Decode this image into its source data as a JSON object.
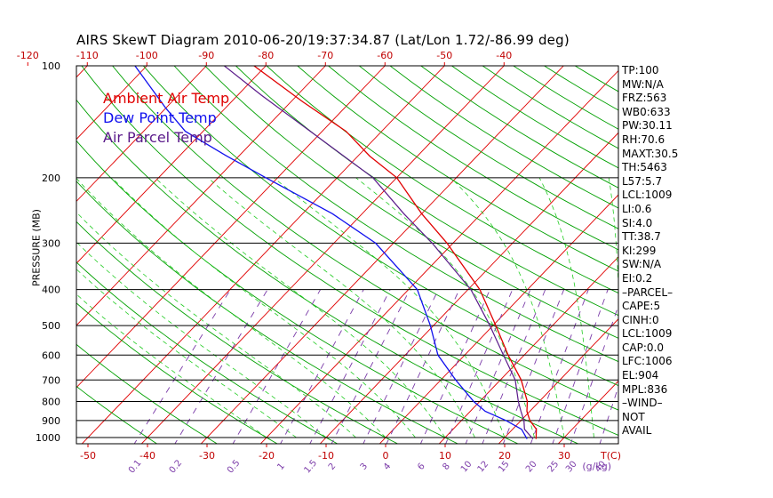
{
  "title": "AIRS SkewT Diagram 2010-06-20/19:37:34.87 (Lat/Lon 1.72/-86.99 deg)",
  "legend": [
    {
      "label": "Ambient Air Temp",
      "color": "#e00000"
    },
    {
      "label": "Dew Point Temp",
      "color": "#1010ee"
    },
    {
      "label": "Air Parcel Temp",
      "color": "#5a1a8a"
    }
  ],
  "ylabel": "PRESSURE (MB)",
  "stats": [
    "TP:100",
    "MW:N/A",
    "FRZ:563",
    "WB0:633",
    "PW:30.11",
    "RH:70.6",
    "MAXT:30.5",
    "TH:5463",
    "L57:5.7",
    "LCL:1009",
    "LI:0.6",
    "SI:4.0",
    "TT:38.7",
    "KI:299",
    "SW:N/A",
    "EI:0.2",
    "–PARCEL–",
    "CAPE:5",
    "CINH:0",
    "LCL:1009",
    "CAP:0.0",
    "LFC:1006",
    "EL:904",
    "MPL:836",
    "–WIND–",
    "NOT",
    "AVAIL"
  ],
  "chart_data": {
    "type": "line",
    "title": "AIRS SkewT Diagram 2010-06-20/19:37:34.87 (Lat/Lon 1.72/-86.99 deg)",
    "ylabel": "PRESSURE (MB)",
    "xlabel": "T(C)",
    "y_scale": "log",
    "ylim": [
      1050,
      100
    ],
    "pressure_ticks": [
      100,
      200,
      300,
      400,
      500,
      600,
      700,
      800,
      900,
      1000
    ],
    "bottom_temp_ticks": [
      -50,
      -40,
      -30,
      -20,
      -10,
      0,
      10,
      20,
      30
    ],
    "top_temp_ticks": [
      -120,
      -110,
      -100,
      -90,
      -80,
      -70,
      -60,
      -50,
      -40
    ],
    "bottom_axis_unit": "T(C)",
    "mixing_ratio_ticks": [
      "0.1",
      "0.2",
      "0.5",
      "1",
      "1.5",
      "2",
      "3",
      "4",
      "6",
      "8",
      "10",
      "12",
      "15",
      "20",
      "25",
      "30",
      "40"
    ],
    "mixing_ratio_unit": "(g/kg)",
    "colors": {
      "temp": "#e00000",
      "dewpoint": "#1010ee",
      "parcel": "#5a1a8a",
      "dry_adiabat": "#00a000",
      "moist_adiabat": "#22cc22",
      "isotherm": "#e00000",
      "mixing_ratio": "#7a3aa8",
      "isobar": "#000000"
    },
    "series": [
      {
        "name": "Ambient Air Temp",
        "color": "#e00000",
        "points": [
          [
            1009,
            25.5
          ],
          [
            950,
            24.0
          ],
          [
            900,
            21.5
          ],
          [
            850,
            19.5
          ],
          [
            800,
            18.0
          ],
          [
            700,
            13.5
          ],
          [
            600,
            7.3
          ],
          [
            500,
            0.5
          ],
          [
            400,
            -8.0
          ],
          [
            300,
            -21.0
          ],
          [
            250,
            -30.0
          ],
          [
            200,
            -40.0
          ],
          [
            175,
            -48.0
          ],
          [
            150,
            -56.0
          ],
          [
            125,
            -68.0
          ],
          [
            100,
            -82.0
          ]
        ]
      },
      {
        "name": "Dew Point Temp",
        "color": "#1010ee",
        "points": [
          [
            1009,
            24.0
          ],
          [
            950,
            21.5
          ],
          [
            900,
            17.5
          ],
          [
            850,
            12.5
          ],
          [
            800,
            9.0
          ],
          [
            700,
            2.5
          ],
          [
            600,
            -4.5
          ],
          [
            500,
            -10.5
          ],
          [
            400,
            -18.5
          ],
          [
            300,
            -33.0
          ],
          [
            250,
            -45.0
          ],
          [
            200,
            -62.0
          ],
          [
            175,
            -72.0
          ],
          [
            150,
            -83.0
          ],
          [
            130,
            -90.0
          ],
          [
            100,
            -102.0
          ]
        ]
      },
      {
        "name": "Air Parcel Temp",
        "color": "#5a1a8a",
        "points": [
          [
            1009,
            25.0
          ],
          [
            950,
            22.0
          ],
          [
            900,
            20.5
          ],
          [
            850,
            18.5
          ],
          [
            800,
            16.5
          ],
          [
            700,
            12.5
          ],
          [
            600,
            6.5
          ],
          [
            500,
            -0.5
          ],
          [
            400,
            -9.5
          ],
          [
            300,
            -23.5
          ],
          [
            250,
            -33.0
          ],
          [
            200,
            -44.0
          ],
          [
            150,
            -62.0
          ],
          [
            120,
            -76.0
          ],
          [
            100,
            -87.0
          ]
        ]
      }
    ]
  }
}
